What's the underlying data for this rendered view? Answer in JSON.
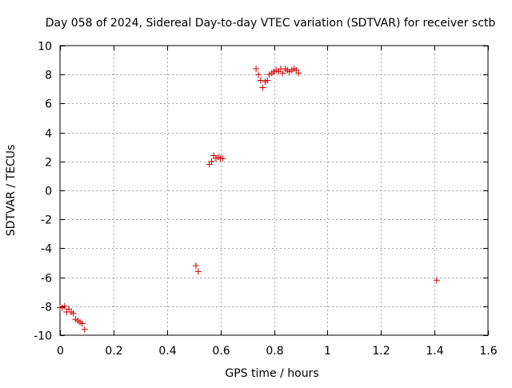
{
  "chart_data": {
    "type": "scatter",
    "title": "Day 058 of 2024, Sidereal Day-to-day VTEC variation (SDTVAR) for receiver sctb",
    "xlabel": "GPS time / hours",
    "ylabel": "SDTVAR / TECUs",
    "xlim": [
      0,
      1.6
    ],
    "ylim": [
      -10,
      10
    ],
    "xticks": [
      0,
      0.2,
      0.4,
      0.6,
      0.8,
      1,
      1.2,
      1.4,
      1.6
    ],
    "xtick_labels": [
      "0",
      "0.2",
      "0.4",
      "0.6",
      "0.8",
      "1",
      "1.2",
      "1.4",
      "1.6"
    ],
    "yticks": [
      -10,
      -8,
      -6,
      -4,
      -2,
      0,
      2,
      4,
      6,
      8,
      10
    ],
    "ytick_labels": [
      "-10",
      "-8",
      "-6",
      "-4",
      "-2",
      "0",
      "2",
      "4",
      "6",
      "8",
      "10"
    ],
    "grid": true,
    "marker": "+",
    "color": "#cc0000",
    "series": [
      {
        "name": "SDTVAR",
        "x": [
          0.0,
          0.008,
          0.017,
          0.025,
          0.033,
          0.042,
          0.05,
          0.058,
          0.067,
          0.075,
          0.083,
          0.092,
          0.508,
          0.517,
          0.558,
          0.567,
          0.575,
          0.583,
          0.592,
          0.6,
          0.608,
          0.733,
          0.742,
          0.75,
          0.758,
          0.767,
          0.775,
          0.783,
          0.792,
          0.8,
          0.808,
          0.817,
          0.825,
          0.833,
          0.842,
          0.85,
          0.858,
          0.867,
          0.875,
          0.883,
          0.892,
          1.408
        ],
        "y": [
          -8.1,
          -8.1,
          -8.0,
          -8.4,
          -8.2,
          -8.4,
          -8.5,
          -8.9,
          -9.0,
          -9.1,
          -9.2,
          -9.6,
          -5.2,
          -5.6,
          1.8,
          2.0,
          2.4,
          2.2,
          2.3,
          2.2,
          2.2,
          8.4,
          8.0,
          7.6,
          7.1,
          7.5,
          7.6,
          8.0,
          8.1,
          8.2,
          8.3,
          8.2,
          8.4,
          8.1,
          8.4,
          8.3,
          8.2,
          8.3,
          8.4,
          8.3,
          8.1,
          -6.2
        ]
      }
    ]
  }
}
